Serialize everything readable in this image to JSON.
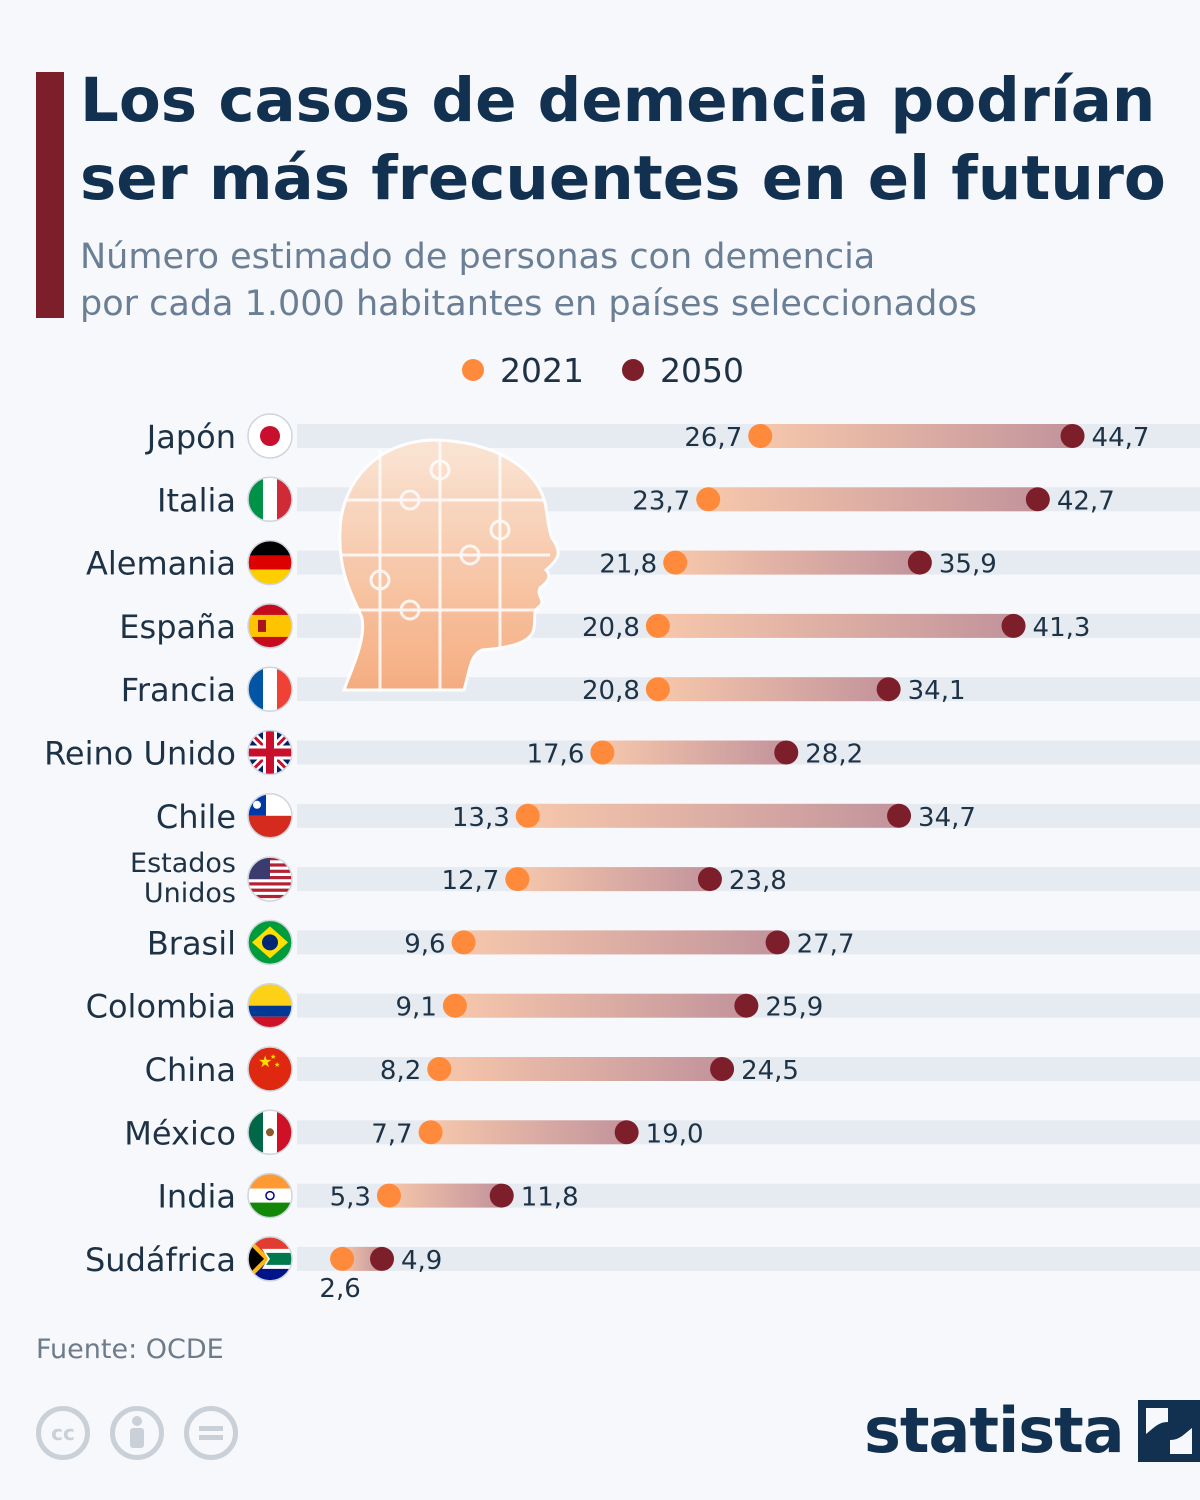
{
  "title_lines": [
    "Los casos de demencia podrían",
    "ser más frecuentes en el futuro"
  ],
  "subtitle_lines": [
    "Número estimado de personas con demencia",
    "por cada 1.000 habitantes en países seleccionados"
  ],
  "legend": {
    "a": "2021",
    "b": "2050"
  },
  "colors": {
    "y2021": "#ff8a3c",
    "y2050": "#7d1f2b",
    "title": "#12304f",
    "track": "#e6ebf2"
  },
  "source": "Fuente: OCDE",
  "brand": "statista",
  "chart_data": {
    "type": "dumbbell",
    "unit": "personas con demencia por cada 1.000 habitantes",
    "series": [
      {
        "name": "2021",
        "values": [
          26.7,
          23.7,
          21.8,
          20.8,
          20.8,
          17.6,
          13.3,
          12.7,
          9.6,
          9.1,
          8.2,
          7.7,
          5.3,
          2.6
        ]
      },
      {
        "name": "2050",
        "values": [
          44.7,
          42.7,
          35.9,
          41.3,
          34.1,
          28.2,
          34.7,
          23.8,
          27.7,
          25.9,
          24.5,
          19.0,
          11.8,
          4.9
        ]
      }
    ],
    "categories": [
      "Japón",
      "Italia",
      "Alemania",
      "España",
      "Francia",
      "Reino Unido",
      "Chile",
      "Estados Unidos",
      "Brasil",
      "Colombia",
      "China",
      "México",
      "India",
      "Sudáfrica"
    ],
    "label_lines": [
      [
        "Japón"
      ],
      [
        "Italia"
      ],
      [
        "Alemania"
      ],
      [
        "España"
      ],
      [
        "Francia"
      ],
      [
        "Reino Unido"
      ],
      [
        "Chile"
      ],
      [
        "Estados",
        "Unidos"
      ],
      [
        "Brasil"
      ],
      [
        "Colombia"
      ],
      [
        "China"
      ],
      [
        "México"
      ],
      [
        "India"
      ],
      [
        "Sudáfrica"
      ]
    ],
    "value_labels_2021": [
      "26,7",
      "23,7",
      "21,8",
      "20,8",
      "20,8",
      "17,6",
      "13,3",
      "12,7",
      "9,6",
      "9,1",
      "8,2",
      "7,7",
      "5,3",
      "2,6"
    ],
    "value_labels_2050": [
      "44,7",
      "42,7",
      "35,9",
      "41,3",
      "34,1",
      "28,2",
      "34,7",
      "23,8",
      "27,7",
      "25,9",
      "24,5",
      "19,0",
      "11,8",
      "4,9"
    ],
    "flags": [
      "japan-flag",
      "italy-flag",
      "germany-flag",
      "spain-flag",
      "france-flag",
      "uk-flag",
      "chile-flag",
      "usa-flag",
      "brazil-flag",
      "colombia-flag",
      "china-flag",
      "mexico-flag",
      "india-flag",
      "south-africa-flag"
    ],
    "x_range": [
      0,
      50
    ]
  }
}
